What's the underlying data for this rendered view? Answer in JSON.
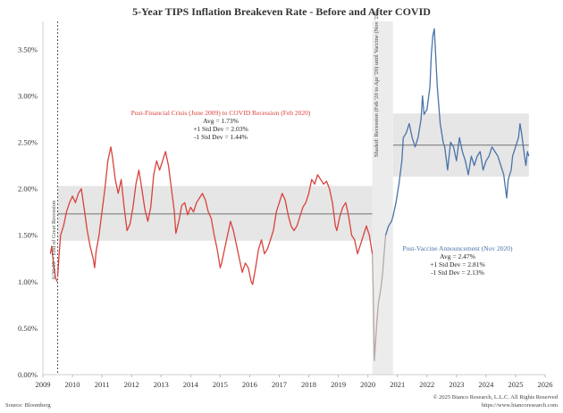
{
  "chart_data": {
    "type": "line",
    "title": "5-Year TIPS Inflation Breakeven Rate - Before and After COVID",
    "xlim": [
      2009.0,
      2026.0
    ],
    "ylim": [
      0.0,
      3.8
    ],
    "x_ticks": [
      2009,
      2010,
      2011,
      2012,
      2013,
      2014,
      2015,
      2016,
      2017,
      2018,
      2019,
      2020,
      2021,
      2022,
      2023,
      2024,
      2025,
      2026
    ],
    "y_ticks": [
      0.0,
      0.5,
      1.0,
      1.5,
      2.0,
      2.5,
      3.0,
      3.5
    ],
    "y_tick_labels": [
      "0.00%",
      "0.50%",
      "1.00%",
      "1.50%",
      "2.00%",
      "2.50%",
      "3.00%",
      "3.50%"
    ],
    "grid": false,
    "series": [
      {
        "segment": "pre-2009 crisis",
        "color": "#d9423b",
        "points": [
          [
            2009.25,
            1.3
          ],
          [
            2009.3,
            1.38
          ],
          [
            2009.35,
            1.22
          ],
          [
            2009.42,
            1.05
          ],
          [
            2009.48,
            1.0
          ]
        ]
      },
      {
        "segment": "post-financial crisis",
        "color": "#d9423b",
        "points": [
          [
            2009.5,
            1.05
          ],
          [
            2009.55,
            1.3
          ],
          [
            2009.6,
            1.5
          ],
          [
            2009.7,
            1.6
          ],
          [
            2009.8,
            1.75
          ],
          [
            2009.9,
            1.85
          ],
          [
            2010.0,
            1.92
          ],
          [
            2010.1,
            1.85
          ],
          [
            2010.2,
            1.95
          ],
          [
            2010.3,
            2.0
          ],
          [
            2010.4,
            1.78
          ],
          [
            2010.5,
            1.55
          ],
          [
            2010.6,
            1.38
          ],
          [
            2010.7,
            1.25
          ],
          [
            2010.75,
            1.15
          ],
          [
            2010.8,
            1.32
          ],
          [
            2010.9,
            1.5
          ],
          [
            2011.0,
            1.75
          ],
          [
            2011.1,
            2.0
          ],
          [
            2011.2,
            2.3
          ],
          [
            2011.3,
            2.45
          ],
          [
            2011.35,
            2.35
          ],
          [
            2011.45,
            2.1
          ],
          [
            2011.55,
            1.95
          ],
          [
            2011.65,
            2.1
          ],
          [
            2011.75,
            1.8
          ],
          [
            2011.85,
            1.55
          ],
          [
            2011.95,
            1.62
          ],
          [
            2012.05,
            1.8
          ],
          [
            2012.15,
            2.05
          ],
          [
            2012.25,
            2.2
          ],
          [
            2012.35,
            2.0
          ],
          [
            2012.45,
            1.78
          ],
          [
            2012.55,
            1.65
          ],
          [
            2012.65,
            1.8
          ],
          [
            2012.75,
            2.15
          ],
          [
            2012.85,
            2.3
          ],
          [
            2012.95,
            2.2
          ],
          [
            2013.05,
            2.3
          ],
          [
            2013.15,
            2.4
          ],
          [
            2013.25,
            2.25
          ],
          [
            2013.35,
            2.0
          ],
          [
            2013.45,
            1.75
          ],
          [
            2013.5,
            1.52
          ],
          [
            2013.6,
            1.65
          ],
          [
            2013.7,
            1.82
          ],
          [
            2013.8,
            1.85
          ],
          [
            2013.9,
            1.72
          ],
          [
            2014.0,
            1.8
          ],
          [
            2014.1,
            1.75
          ],
          [
            2014.2,
            1.85
          ],
          [
            2014.3,
            1.9
          ],
          [
            2014.4,
            1.95
          ],
          [
            2014.5,
            1.88
          ],
          [
            2014.6,
            1.75
          ],
          [
            2014.7,
            1.68
          ],
          [
            2014.8,
            1.5
          ],
          [
            2014.9,
            1.35
          ],
          [
            2015.0,
            1.15
          ],
          [
            2015.05,
            1.2
          ],
          [
            2015.15,
            1.35
          ],
          [
            2015.25,
            1.5
          ],
          [
            2015.35,
            1.65
          ],
          [
            2015.45,
            1.55
          ],
          [
            2015.55,
            1.4
          ],
          [
            2015.65,
            1.25
          ],
          [
            2015.75,
            1.1
          ],
          [
            2015.85,
            1.2
          ],
          [
            2015.95,
            1.15
          ],
          [
            2016.05,
            1.0
          ],
          [
            2016.1,
            0.97
          ],
          [
            2016.2,
            1.15
          ],
          [
            2016.3,
            1.35
          ],
          [
            2016.4,
            1.45
          ],
          [
            2016.5,
            1.3
          ],
          [
            2016.6,
            1.35
          ],
          [
            2016.7,
            1.45
          ],
          [
            2016.8,
            1.55
          ],
          [
            2016.9,
            1.75
          ],
          [
            2017.0,
            1.85
          ],
          [
            2017.1,
            1.95
          ],
          [
            2017.2,
            1.88
          ],
          [
            2017.3,
            1.72
          ],
          [
            2017.4,
            1.6
          ],
          [
            2017.5,
            1.55
          ],
          [
            2017.6,
            1.6
          ],
          [
            2017.7,
            1.7
          ],
          [
            2017.8,
            1.8
          ],
          [
            2017.9,
            1.85
          ],
          [
            2018.0,
            1.95
          ],
          [
            2018.1,
            2.1
          ],
          [
            2018.2,
            2.05
          ],
          [
            2018.3,
            2.15
          ],
          [
            2018.4,
            2.1
          ],
          [
            2018.5,
            2.05
          ],
          [
            2018.6,
            2.08
          ],
          [
            2018.7,
            2.0
          ],
          [
            2018.8,
            1.85
          ],
          [
            2018.9,
            1.6
          ],
          [
            2018.95,
            1.55
          ],
          [
            2019.05,
            1.7
          ],
          [
            2019.15,
            1.8
          ],
          [
            2019.25,
            1.85
          ],
          [
            2019.35,
            1.7
          ],
          [
            2019.45,
            1.5
          ],
          [
            2019.55,
            1.45
          ],
          [
            2019.65,
            1.3
          ],
          [
            2019.75,
            1.4
          ],
          [
            2019.85,
            1.5
          ],
          [
            2019.95,
            1.6
          ],
          [
            2020.0,
            1.55
          ],
          [
            2020.05,
            1.5
          ],
          [
            2020.1,
            1.4
          ],
          [
            2020.15,
            1.3
          ]
        ]
      },
      {
        "segment": "COVID shock",
        "color": "#b5a9a3",
        "points": [
          [
            2020.15,
            1.3
          ],
          [
            2020.18,
            0.9
          ],
          [
            2020.2,
            0.5
          ],
          [
            2020.22,
            0.15
          ],
          [
            2020.25,
            0.3
          ],
          [
            2020.3,
            0.55
          ],
          [
            2020.35,
            0.75
          ],
          [
            2020.4,
            0.85
          ],
          [
            2020.45,
            0.95
          ],
          [
            2020.5,
            1.1
          ],
          [
            2020.55,
            1.3
          ],
          [
            2020.6,
            1.5
          ]
        ]
      },
      {
        "segment": "post-vaccine",
        "color": "#4a73a8",
        "points": [
          [
            2020.6,
            1.5
          ],
          [
            2020.7,
            1.6
          ],
          [
            2020.8,
            1.65
          ],
          [
            2020.85,
            1.7
          ],
          [
            2020.95,
            1.85
          ],
          [
            2021.05,
            2.05
          ],
          [
            2021.15,
            2.3
          ],
          [
            2021.2,
            2.55
          ],
          [
            2021.3,
            2.6
          ],
          [
            2021.4,
            2.7
          ],
          [
            2021.5,
            2.55
          ],
          [
            2021.6,
            2.45
          ],
          [
            2021.7,
            2.55
          ],
          [
            2021.8,
            2.75
          ],
          [
            2021.85,
            3.0
          ],
          [
            2021.9,
            2.8
          ],
          [
            2022.0,
            2.85
          ],
          [
            2022.1,
            3.1
          ],
          [
            2022.15,
            3.45
          ],
          [
            2022.2,
            3.65
          ],
          [
            2022.25,
            3.72
          ],
          [
            2022.3,
            3.4
          ],
          [
            2022.35,
            3.1
          ],
          [
            2022.45,
            2.7
          ],
          [
            2022.5,
            2.6
          ],
          [
            2022.55,
            2.5
          ],
          [
            2022.6,
            2.45
          ],
          [
            2022.7,
            2.2
          ],
          [
            2022.8,
            2.5
          ],
          [
            2022.9,
            2.45
          ],
          [
            2023.0,
            2.3
          ],
          [
            2023.1,
            2.55
          ],
          [
            2023.2,
            2.4
          ],
          [
            2023.3,
            2.3
          ],
          [
            2023.4,
            2.15
          ],
          [
            2023.5,
            2.35
          ],
          [
            2023.6,
            2.25
          ],
          [
            2023.7,
            2.35
          ],
          [
            2023.8,
            2.4
          ],
          [
            2023.9,
            2.2
          ],
          [
            2024.0,
            2.3
          ],
          [
            2024.1,
            2.35
          ],
          [
            2024.2,
            2.45
          ],
          [
            2024.3,
            2.4
          ],
          [
            2024.4,
            2.35
          ],
          [
            2024.5,
            2.25
          ],
          [
            2024.6,
            2.15
          ],
          [
            2024.7,
            1.9
          ],
          [
            2024.75,
            2.1
          ],
          [
            2024.85,
            2.2
          ],
          [
            2024.9,
            2.35
          ],
          [
            2025.0,
            2.45
          ],
          [
            2025.1,
            2.55
          ],
          [
            2025.15,
            2.7
          ],
          [
            2025.2,
            2.6
          ],
          [
            2025.3,
            2.35
          ],
          [
            2025.35,
            2.25
          ],
          [
            2025.4,
            2.4
          ],
          [
            2025.45,
            2.35
          ]
        ]
      }
    ],
    "bands": [
      {
        "x_start": 2009.5,
        "x_end": 2020.15,
        "mean": 1.73,
        "upper": 2.03,
        "lower": 1.44
      },
      {
        "x_start": 2020.85,
        "x_end": 2025.45,
        "mean": 2.47,
        "upper": 2.81,
        "lower": 2.13
      }
    ],
    "shaded_region": {
      "x_start": 2020.15,
      "x_end": 2020.85
    },
    "vertical_markers": [
      {
        "x": 2009.5,
        "label": "6/30/09 = End of Great Recession"
      }
    ],
    "annotations": {
      "pre": {
        "title": "Post-Financial Crisis (June 2009) to COVID Recession (Feb 2020)",
        "line1": "Avg = 1.73%",
        "line2": "+1 Std Dev = 2.03%",
        "line3": "-1 Std Dev = 1.44%"
      },
      "post": {
        "title": "Post-Vaccine Announcement (Nov 2020)",
        "line1": "Avg = 2.47%",
        "line2": "+1 Std Dev = 2.81%",
        "line3": "-1 Std Dev = 2.13%"
      },
      "shaded": "Shaded: Recession (Feb '20 to Apr '20) until Vaccine (Nov '20)"
    },
    "source": "Source: Bloomberg",
    "copyright_line1": "© 2025 Bianco Research, L.L.C. All Rights Reserved",
    "copyright_line2": "https://www.biancoresearch.com"
  }
}
